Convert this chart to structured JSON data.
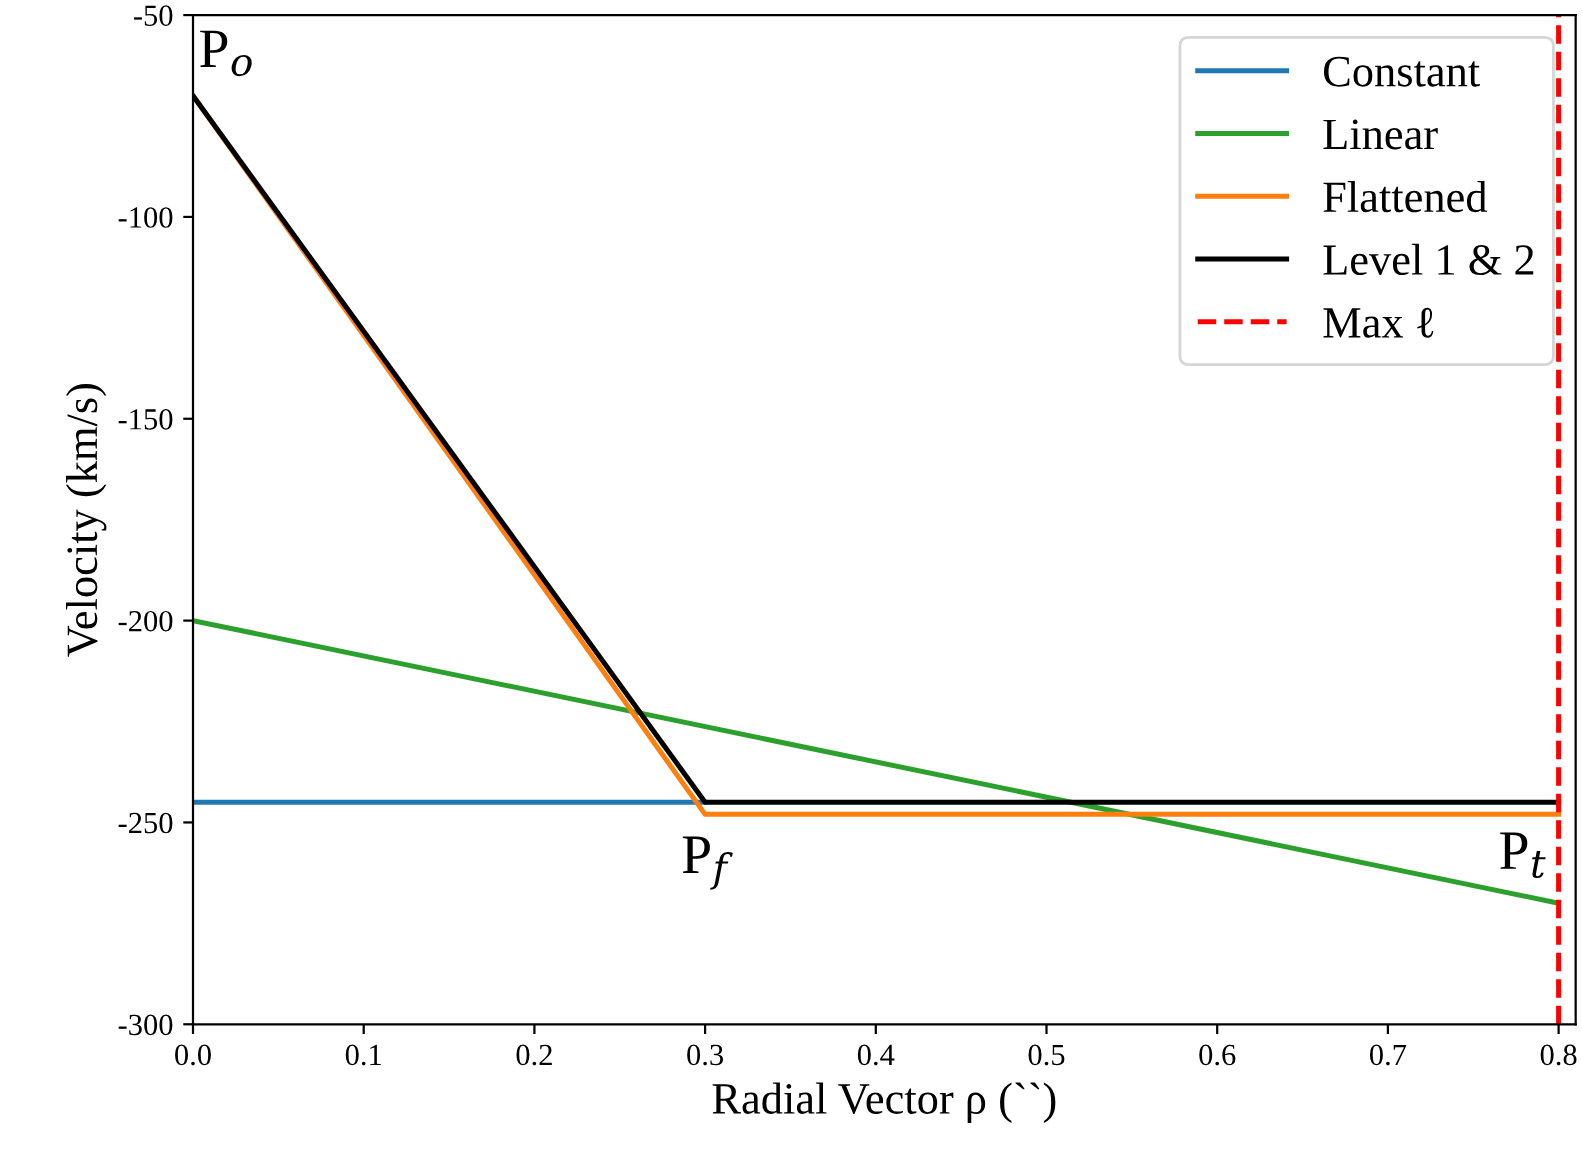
{
  "chart_data": {
    "type": "line",
    "xlabel": "Radial Vector ρ (``)",
    "ylabel": "Velocity (km/s)",
    "xlim": [
      0,
      0.81
    ],
    "xticks": [
      {
        "value": 0,
        "label": "0.0"
      },
      0.1,
      0.2,
      0.3,
      0.4,
      0.5,
      0.6,
      0.7,
      0.8
    ],
    "ylim": [
      -300,
      -50
    ],
    "yticks": [
      -300,
      -250,
      -200,
      -150,
      -100,
      -50
    ],
    "series": [
      {
        "name": "Constant",
        "color": "#1f77b4",
        "x": [
          0,
          0.3
        ],
        "values": [
          -245,
          -245
        ]
      },
      {
        "name": "Linear",
        "color": "#2ca02c",
        "x": [
          0,
          0.8
        ],
        "values": [
          -200,
          -270
        ]
      },
      {
        "name": "Flattened",
        "color": "#ff7f0e",
        "x": [
          0,
          0.3,
          0.8
        ],
        "values": [
          -70,
          -248,
          -248
        ]
      },
      {
        "name": "Level 1 & 2",
        "color": "#000000",
        "x": [
          0,
          0.3,
          0.8
        ],
        "values": [
          -70,
          -245,
          -245
        ]
      }
    ],
    "ref_lines": [
      {
        "axis": "x",
        "value": 0.8,
        "label": "Max ℓ",
        "color": "#ff0000",
        "line_style": "dashed"
      }
    ],
    "annotations": [
      {
        "text": "P$_{o}$",
        "x": 0,
        "y": -70
      },
      {
        "text": "P$_{f}$",
        "x": 0.3,
        "y": -248
      },
      {
        "text": "P$_{t}$",
        "x": 0.8,
        "y": -270
      }
    ],
    "legend": "top right",
    "grid": false
  }
}
